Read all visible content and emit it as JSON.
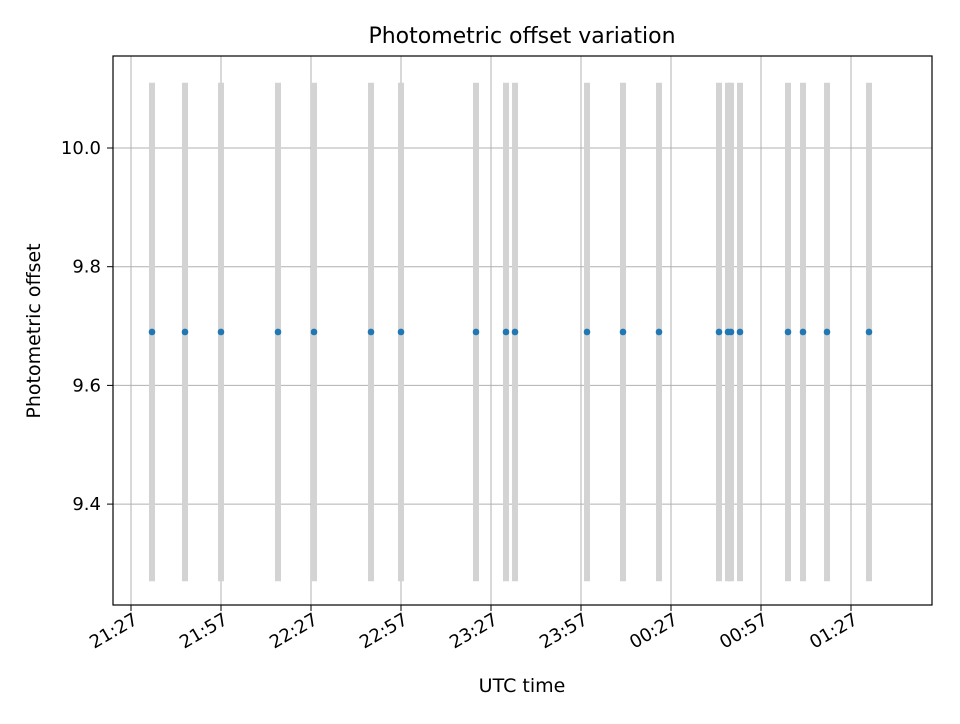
{
  "chart_data": {
    "type": "scatter",
    "title": "Photometric offset variation",
    "xlabel": "UTC time",
    "ylabel": "Photometric offset",
    "x_ticks": [
      "21:27",
      "21:57",
      "22:27",
      "22:57",
      "23:27",
      "23:57",
      "00:27",
      "00:57",
      "01:27"
    ],
    "y_ticks": [
      9.4,
      9.6,
      9.8,
      10.0
    ],
    "ylim": [
      9.23,
      10.155
    ],
    "xlim": [
      "21:21",
      "01:54"
    ],
    "grid": true,
    "point_color": "#1f77b4",
    "error_bar_color": "#d3d3d3",
    "error_bar_range": [
      9.27,
      10.11
    ],
    "x": [
      "21:34",
      "21:45",
      "21:57",
      "22:16",
      "22:28",
      "22:47",
      "22:57",
      "23:22",
      "23:32",
      "23:35",
      "23:59",
      "00:11",
      "00:23",
      "00:43",
      "00:46",
      "00:47",
      "00:50",
      "01:06",
      "01:11",
      "01:19",
      "01:33"
    ],
    "y": [
      9.69,
      9.69,
      9.69,
      9.69,
      9.69,
      9.69,
      9.69,
      9.69,
      9.69,
      9.69,
      9.69,
      9.69,
      9.69,
      9.69,
      9.69,
      9.69,
      9.69,
      9.69,
      9.69,
      9.69,
      9.69
    ]
  }
}
